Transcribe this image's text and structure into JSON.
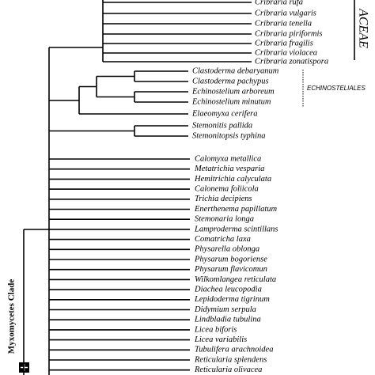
{
  "taxa_top": [
    "Cribraria rufa",
    "Cribraria vulgaris",
    "Cribraria tenella",
    "Cribraria piriformis",
    "Cribraria fragilis",
    "Cribraria violacea",
    "Cribraria zonatispora"
  ],
  "taxa_middle": [
    "Clastoderma debaryanum",
    "Clastoderma pachypus",
    "Echinostelium arboreum",
    "Echinostelium minutum",
    "Elaeomyxa cerifera",
    "Stemonitis pallida",
    "Stemonitopsis typhina"
  ],
  "taxa_bottom": [
    "Calomyxa metallica",
    "Metatrichia vesparia",
    "Hemitrichia calyculata",
    "Calonema foliicola",
    "Trichia decipiens",
    "Enerthenema papillatum",
    "Stemonaria longa",
    "Lamproderma scintillans",
    "Comatricha laxa",
    "Physarella oblonga",
    "Physarum bogoriense",
    "Physarum flavicomun",
    "Wilkomlangea reticulata",
    "Diachea leucopodia",
    "Lepidoderma tigrinum",
    "Didymium serpula",
    "Lindbladia tubulina",
    "Licea biforis",
    "Licea variabilis",
    "Tubulifera arachnoidea",
    "Reticularia splendens",
    "Reticularia olivacea"
  ],
  "clade_labels": {
    "top": "ACEAE",
    "middle": "ECHINOSTELIALES",
    "root": "Myxomycetes Clade"
  }
}
